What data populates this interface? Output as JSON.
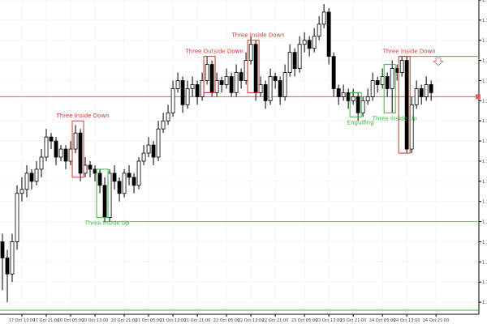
{
  "chart_data": {
    "type": "candlestick",
    "open": [
      1.159,
      1.1586,
      1.1582,
      1.159,
      1.1602,
      1.1603,
      1.1607,
      1.1605,
      1.1608,
      1.1611,
      1.1616,
      1.1615,
      1.1611,
      1.1613,
      1.161,
      1.1613,
      1.1617,
      1.1607,
      1.1609,
      1.1608,
      1.1607,
      1.1604,
      1.1596,
      1.1607,
      1.1605,
      1.1602,
      1.1607,
      1.1606,
      1.1604,
      1.161,
      1.1612,
      1.1614,
      1.1611,
      1.1618,
      1.162,
      1.1622,
      1.1628,
      1.163,
      1.1624,
      1.1628,
      1.1629,
      1.1626,
      1.163,
      1.1634,
      1.1627,
      1.163,
      1.1629,
      1.1631,
      1.1627,
      1.1632,
      1.163,
      1.1635,
      1.1639,
      1.1627,
      1.1629,
      1.1625,
      1.1631,
      1.163,
      1.1626,
      1.1632,
      1.1637,
      1.1633,
      1.1639,
      1.164,
      1.1638,
      1.1641,
      1.1644,
      1.1647,
      1.1636,
      1.1628,
      1.1626,
      1.1627,
      1.1625,
      1.1626,
      1.1622,
      1.1625,
      1.1626,
      1.163,
      1.1629,
      1.1631,
      1.1628,
      1.1633,
      1.1632,
      1.1635,
      1.1613,
      1.1624,
      1.1628,
      1.1626,
      1.1629
    ],
    "high": [
      1.1592,
      1.1588,
      1.1592,
      1.1604,
      1.1606,
      1.1609,
      1.1608,
      1.161,
      1.1613,
      1.1618,
      1.1617,
      1.1616,
      1.1614,
      1.1614,
      1.1615,
      1.1619,
      1.1618,
      1.1611,
      1.161,
      1.1609,
      1.1608,
      1.1606,
      1.1608,
      1.1609,
      1.1606,
      1.1608,
      1.1609,
      1.1607,
      1.1611,
      1.1614,
      1.1616,
      1.1615,
      1.162,
      1.1622,
      1.1624,
      1.163,
      1.1632,
      1.1631,
      1.163,
      1.1631,
      1.163,
      1.1632,
      1.1636,
      1.1635,
      1.1632,
      1.1631,
      1.1633,
      1.1632,
      1.1634,
      1.1633,
      1.1637,
      1.1641,
      1.164,
      1.1631,
      1.163,
      1.1633,
      1.1632,
      1.1631,
      1.1634,
      1.1639,
      1.1638,
      1.1641,
      1.1642,
      1.1641,
      1.1643,
      1.1646,
      1.1649,
      1.1648,
      1.1637,
      1.1629,
      1.1629,
      1.1628,
      1.1628,
      1.1627,
      1.1626,
      1.1628,
      1.1632,
      1.1631,
      1.1633,
      1.1632,
      1.1635,
      1.1634,
      1.1636,
      1.1636,
      1.1626,
      1.163,
      1.1629,
      1.1631,
      1.163
    ],
    "low": [
      1.1578,
      1.1575,
      1.158,
      1.1588,
      1.16,
      1.1601,
      1.1603,
      1.1604,
      1.1606,
      1.161,
      1.1613,
      1.1609,
      1.161,
      1.1608,
      1.1609,
      1.1612,
      1.1605,
      1.1606,
      1.1606,
      1.1605,
      1.1602,
      1.1595,
      1.1595,
      1.1603,
      1.16,
      1.1601,
      1.1604,
      1.1602,
      1.1603,
      1.1609,
      1.1611,
      1.1609,
      1.161,
      1.1617,
      1.1619,
      1.1621,
      1.1627,
      1.1622,
      1.1623,
      1.1626,
      1.1624,
      1.1625,
      1.1629,
      1.1626,
      1.1626,
      1.1627,
      1.1628,
      1.1626,
      1.1626,
      1.1628,
      1.1629,
      1.1634,
      1.1625,
      1.1626,
      1.1623,
      1.1624,
      1.1628,
      1.1624,
      1.1625,
      1.1631,
      1.1631,
      1.1632,
      1.1637,
      1.1636,
      1.1637,
      1.164,
      1.1643,
      1.1634,
      1.1626,
      1.1624,
      1.1625,
      1.1623,
      1.1624,
      1.162,
      1.1621,
      1.1624,
      1.1625,
      1.1627,
      1.1628,
      1.1626,
      1.1622,
      1.163,
      1.1631,
      1.1612,
      1.1612,
      1.1623,
      1.1624,
      1.1625,
      1.1625
    ],
    "close": [
      1.1586,
      1.1582,
      1.159,
      1.1602,
      1.1603,
      1.1607,
      1.1605,
      1.1608,
      1.1611,
      1.1616,
      1.1615,
      1.1611,
      1.1613,
      1.161,
      1.1613,
      1.1617,
      1.1607,
      1.1609,
      1.1608,
      1.1607,
      1.1604,
      1.1596,
      1.1607,
      1.1605,
      1.1602,
      1.1607,
      1.1606,
      1.1604,
      1.161,
      1.1612,
      1.1614,
      1.1611,
      1.1618,
      1.162,
      1.1622,
      1.1628,
      1.163,
      1.1624,
      1.1628,
      1.1629,
      1.1626,
      1.163,
      1.1634,
      1.1627,
      1.163,
      1.1629,
      1.1631,
      1.1627,
      1.1632,
      1.163,
      1.1635,
      1.1639,
      1.1627,
      1.1629,
      1.1625,
      1.1631,
      1.163,
      1.1626,
      1.1632,
      1.1637,
      1.1633,
      1.1639,
      1.164,
      1.1638,
      1.1641,
      1.1644,
      1.1647,
      1.1636,
      1.1628,
      1.1626,
      1.1627,
      1.1625,
      1.1626,
      1.1622,
      1.1625,
      1.1626,
      1.163,
      1.1629,
      1.1631,
      1.1628,
      1.1633,
      1.1632,
      1.1635,
      1.1613,
      1.1624,
      1.1628,
      1.1626,
      1.1629,
      1.1627
    ],
    "up_color": "#ffffff",
    "down_color": "#000000",
    "xlim": [
      -0.5,
      97.8
    ],
    "xticks": [
      {
        "value": 4,
        "label": "17 Oct 13:00"
      },
      {
        "value": 9,
        "label": "17 Oct 21:00"
      },
      {
        "value": 14,
        "label": "20 Oct 05:00"
      },
      {
        "value": 19,
        "label": "20 Oct 13:00"
      },
      {
        "value": 25,
        "label": "20 Oct 21:00"
      },
      {
        "value": 30,
        "label": "21 Oct 05:00"
      },
      {
        "value": 35,
        "label": "21 Oct 13:00"
      },
      {
        "value": 40,
        "label": "21 Oct 21:00"
      },
      {
        "value": 46,
        "label": "22 Oct 05:00"
      },
      {
        "value": 51,
        "label": "22 Oct 13:00"
      },
      {
        "value": 56,
        "label": "22 Oct 21:00"
      },
      {
        "value": 62,
        "label": "23 Oct 05:00"
      },
      {
        "value": 67,
        "label": "23 Oct 13:00"
      },
      {
        "value": 72,
        "label": "23 Oct 21:00"
      },
      {
        "value": 78,
        "label": "24 Oct 05:00"
      },
      {
        "value": 83,
        "label": "24 Oct 13:00"
      },
      {
        "value": 89,
        "label": "24 Oct 21:00"
      }
    ],
    "ylim": [
      1.1572,
      1.165
    ],
    "yticks": [
      1.1575,
      1.158,
      1.1585,
      1.159,
      1.1595,
      1.16,
      1.1605,
      1.161,
      1.1615,
      1.162,
      1.1625,
      1.163,
      1.1635,
      1.164,
      1.1645,
      1.165
    ],
    "grid": true,
    "lines": [
      {
        "value": 1.1626,
        "color": "#e06060",
        "from": -0.5
      },
      {
        "value": 1.1595,
        "color": "#5fc35f",
        "from": 20.5
      },
      {
        "value": 1.1636,
        "color": "#e06060",
        "from": 81.5
      },
      {
        "value": 1.1573,
        "color": "#3cb43c",
        "from": -0.5
      }
    ],
    "patterns": [
      {
        "label": "Three Inside Down",
        "color": "#e03030",
        "start": 15,
        "end": 16,
        "top": 1.162,
        "bottom": 1.1606,
        "position": "above"
      },
      {
        "label": "Three Inside Up",
        "color": "#3cb43c",
        "start": 20,
        "end": 21,
        "top": 1.1608,
        "bottom": 1.1596,
        "position": "below"
      },
      {
        "label": "Three Outside Down",
        "color": "#e03030",
        "start": 42,
        "end": 43,
        "top": 1.1636,
        "bottom": 1.1627,
        "position": "above"
      },
      {
        "label": "Three Inside Down",
        "color": "#e03030",
        "start": 51,
        "end": 52,
        "top": 1.164,
        "bottom": 1.1627,
        "position": "above"
      },
      {
        "label": "Engulfing",
        "color": "#3cb43c",
        "start": 72,
        "end": 73,
        "top": 1.1627,
        "bottom": 1.1621,
        "position": "below"
      },
      {
        "label": "Three Inside Up",
        "color": "#3cb43c",
        "start": 79,
        "end": 80,
        "top": 1.1634,
        "bottom": 1.1622,
        "position": "below"
      },
      {
        "label": "Three Inside Down",
        "color": "#e03030",
        "start": 82,
        "end": 83,
        "top": 1.1636,
        "bottom": 1.1612,
        "position": "above"
      }
    ]
  }
}
